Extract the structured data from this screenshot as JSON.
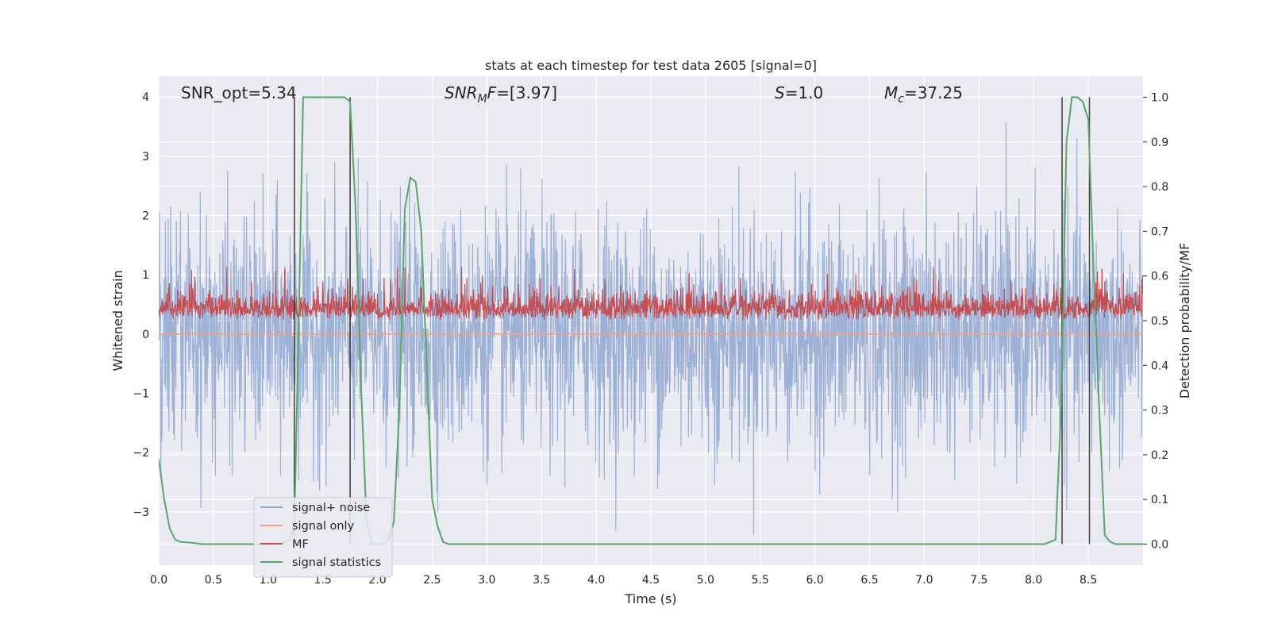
{
  "chart_data": {
    "type": "line",
    "title": "stats at each timestep for test data 2605 [signal=0]",
    "xlabel": "Time (s)",
    "ylabel": "Whitened strain",
    "y2label": "Detection probability/MF",
    "xlim": [
      0,
      9.0
    ],
    "ylim": [
      -3.9,
      4.35
    ],
    "y2lim": [
      -0.047,
      1.047
    ],
    "x_ticks": [
      0.0,
      0.5,
      1.0,
      1.5,
      2.0,
      2.5,
      3.0,
      3.5,
      4.0,
      4.5,
      5.0,
      5.5,
      6.0,
      6.5,
      7.0,
      7.5,
      8.0,
      8.5
    ],
    "x_tick_labels": [
      "0.0",
      "0.5",
      "1.0",
      "1.5",
      "2.0",
      "2.5",
      "3.0",
      "3.5",
      "4.0",
      "4.5",
      "5.0",
      "5.5",
      "6.0",
      "6.5",
      "7.0",
      "7.5",
      "8.0",
      "8.5"
    ],
    "y_ticks": [
      -3,
      -2,
      -1,
      0,
      1,
      2,
      3,
      4
    ],
    "y_tick_labels": [
      "−3",
      "−2",
      "−1",
      "0",
      "1",
      "2",
      "3",
      "4"
    ],
    "y2_ticks": [
      0.0,
      0.1,
      0.2,
      0.3,
      0.4,
      0.5,
      0.6,
      0.7,
      0.8,
      0.9,
      1.0
    ],
    "y2_tick_labels": [
      "0.0",
      "0.1",
      "0.2",
      "0.3",
      "0.4",
      "0.5",
      "0.6",
      "0.7",
      "0.8",
      "0.9",
      "1.0"
    ],
    "grid": true,
    "legend_position": "lower-left",
    "annotations": {
      "snr_opt": "SNR_opt=5.34",
      "snr_mf_sym": "SNR",
      "snr_mf_sub": "M",
      "snr_mf_sym2": "F",
      "snr_mf_val": "=[3.97]",
      "s_sym": "S",
      "s_val": "=1.0",
      "mc_sym": "M",
      "mc_sub": "c",
      "mc_val": "=37.25"
    },
    "vertical_markers": [
      1.24,
      1.75,
      8.26,
      8.51
    ],
    "series": [
      {
        "name": "signal+ noise",
        "color": "#8fa7d1",
        "axis": "left",
        "description": "whitened strain noise, roughly unit std, peaks near ±3.9",
        "approx_amplitude": 1.0
      },
      {
        "name": "signal only",
        "color": "#e9a48a",
        "axis": "left",
        "x": [
          0,
          9.0
        ],
        "y": [
          0.0,
          0.0
        ]
      },
      {
        "name": "MF",
        "color": "#c44e52",
        "axis": "right",
        "description": "matched filter output, ~0.5 to 0.6 on right axis"
      },
      {
        "name": "signal statistics",
        "color": "#55a868",
        "axis": "right",
        "x": [
          0.0,
          0.05,
          0.1,
          0.15,
          0.2,
          0.3,
          0.4,
          0.6,
          0.8,
          1.0,
          1.1,
          1.2,
          1.24,
          1.28,
          1.32,
          1.36,
          1.4,
          1.5,
          1.6,
          1.7,
          1.75,
          1.8,
          1.85,
          1.9,
          1.95,
          2.0,
          2.05,
          2.1,
          2.15,
          2.2,
          2.25,
          2.3,
          2.35,
          2.4,
          2.45,
          2.5,
          2.55,
          2.6,
          2.65,
          2.7,
          3.0,
          4.0,
          5.0,
          6.0,
          7.0,
          8.0,
          8.1,
          8.15,
          8.2,
          8.25,
          8.3,
          8.35,
          8.4,
          8.45,
          8.5,
          8.55,
          8.6,
          8.65,
          8.7,
          8.75,
          8.8,
          8.85,
          8.9,
          9.0
        ],
        "y": [
          0.19,
          0.1,
          0.035,
          0.01,
          0.005,
          0.003,
          0.0,
          0.0,
          0.0,
          0.0,
          0.0,
          0.01,
          0.04,
          0.5,
          1.0,
          1.0,
          1.0,
          1.0,
          1.0,
          1.0,
          0.99,
          0.75,
          0.35,
          0.05,
          0.0,
          0.0,
          0.0,
          0.01,
          0.05,
          0.3,
          0.75,
          0.82,
          0.81,
          0.7,
          0.4,
          0.1,
          0.04,
          0.005,
          0.0,
          0.0,
          0.0,
          0.0,
          0.0,
          0.0,
          0.0,
          0.0,
          0.0,
          0.005,
          0.01,
          0.3,
          0.9,
          1.0,
          1.0,
          0.99,
          0.95,
          0.6,
          0.3,
          0.02,
          0.005,
          0.0,
          0.0,
          0.0,
          0.0,
          0.0
        ]
      }
    ]
  }
}
